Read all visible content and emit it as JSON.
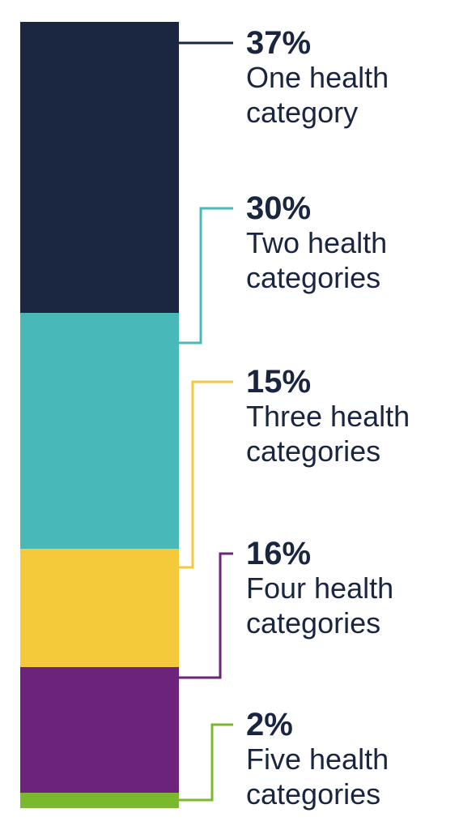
{
  "chart_data": {
    "type": "bar",
    "stacked": true,
    "orientation": "vertical",
    "segments": [
      {
        "value": 37,
        "value_label": "37%",
        "label": "One health\ncategory",
        "color": "#1b2641"
      },
      {
        "value": 30,
        "value_label": "30%",
        "label": "Two health\ncategories",
        "color": "#48b9b8"
      },
      {
        "value": 15,
        "value_label": "15%",
        "label": "Three health\ncategories",
        "color": "#f4c93a"
      },
      {
        "value": 16,
        "value_label": "16%",
        "label": "Four health\ncategories",
        "color": "#6c237a"
      },
      {
        "value": 2,
        "value_label": "2%",
        "label": "Five health\ncategories",
        "color": "#7ab82f"
      }
    ]
  }
}
